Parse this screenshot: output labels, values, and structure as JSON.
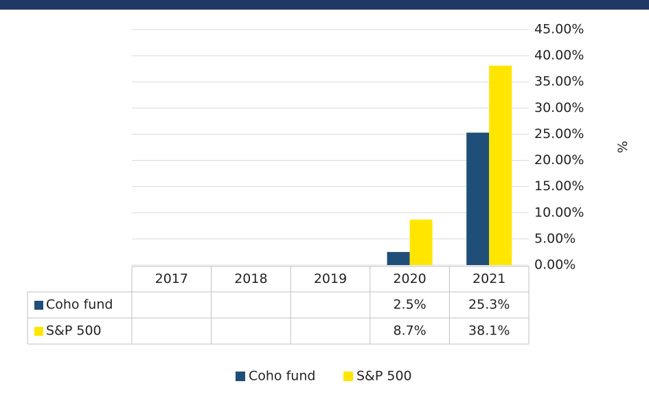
{
  "chart_data": {
    "type": "bar",
    "categories": [
      "2017",
      "2018",
      "2019",
      "2020",
      "2021"
    ],
    "series": [
      {
        "name": "Coho fund",
        "color": "#1f4e79",
        "values": [
          null,
          null,
          null,
          2.5,
          25.3
        ],
        "value_labels": [
          null,
          null,
          null,
          "2.5%",
          "25.3%"
        ]
      },
      {
        "name": "S&P 500",
        "color": "#ffe600",
        "values": [
          null,
          null,
          null,
          8.7,
          38.1
        ],
        "value_labels": [
          null,
          null,
          null,
          "8.7%",
          "38.1%"
        ]
      }
    ],
    "ylabel": "%",
    "ylim": [
      0,
      45
    ],
    "yticks": [
      {
        "value": 0,
        "label": "0.00%"
      },
      {
        "value": 5,
        "label": "5.00%"
      },
      {
        "value": 10,
        "label": "10.00%"
      },
      {
        "value": 15,
        "label": "15.00%"
      },
      {
        "value": 20,
        "label": "20.00%"
      },
      {
        "value": 25,
        "label": "25.00%"
      },
      {
        "value": 30,
        "label": "30.00%"
      },
      {
        "value": 35,
        "label": "35.00%"
      },
      {
        "value": 40,
        "label": "40.00%"
      },
      {
        "value": 45,
        "label": "45.00%"
      }
    ],
    "grid": true,
    "legend": "bottom"
  }
}
